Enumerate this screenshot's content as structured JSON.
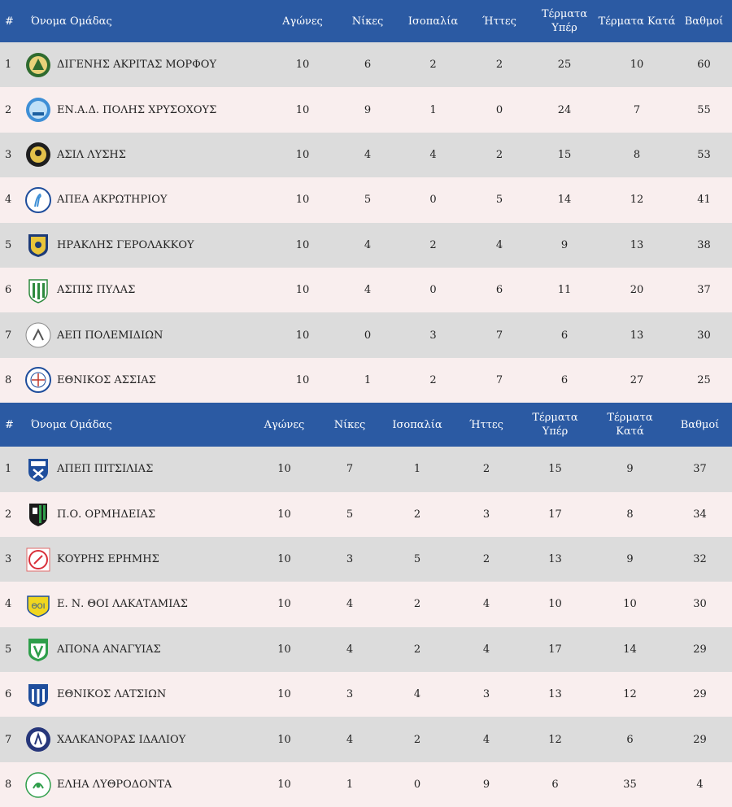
{
  "groups": [
    {
      "headers": {
        "pos": "#",
        "team": "Όνομα Ομάδας",
        "played": "Αγώνες",
        "wins": "Νίκες",
        "draws": "Ισοπαλία",
        "losses": "Ήττες",
        "gf": "Τέρματα Υπέρ",
        "ga": "Τέρματα Κατά",
        "pts": "Βαθμοί"
      },
      "rows": [
        {
          "pos": "1",
          "team": "ΔΙΓΕΝΗΣ ΑΚΡΙΤΑΣ ΜΟΡΦΟΥ",
          "played": "10",
          "wins": "6",
          "draws": "2",
          "losses": "2",
          "gf": "25",
          "ga": "10",
          "pts": "60",
          "logo": "digenis-crest"
        },
        {
          "pos": "2",
          "team": "ΕΝ.Α.Δ. ΠΟΛΗΣ ΧΡΥΣΟΧΟΥΣ",
          "played": "10",
          "wins": "9",
          "draws": "1",
          "losses": "0",
          "gf": "24",
          "ga": "7",
          "pts": "55",
          "logo": "enad-crest"
        },
        {
          "pos": "3",
          "team": "ΑΣΙΛ ΛΥΣΗΣ",
          "played": "10",
          "wins": "4",
          "draws": "4",
          "losses": "2",
          "gf": "15",
          "ga": "8",
          "pts": "53",
          "logo": "asil-crest"
        },
        {
          "pos": "4",
          "team": "ΑΠΕΑ ΑΚΡΩΤΗΡΙΟΥ",
          "played": "10",
          "wins": "5",
          "draws": "0",
          "losses": "5",
          "gf": "14",
          "ga": "12",
          "pts": "41",
          "logo": "apea-crest"
        },
        {
          "pos": "5",
          "team": "ΗΡΑΚΛΗΣ ΓΕΡΟΛΑΚΚΟΥ",
          "played": "10",
          "wins": "4",
          "draws": "2",
          "losses": "4",
          "gf": "9",
          "ga": "13",
          "pts": "38",
          "logo": "iraklis-crest"
        },
        {
          "pos": "6",
          "team": "ΑΣΠΙΣ ΠΥΛΑΣ",
          "played": "10",
          "wins": "4",
          "draws": "0",
          "losses": "6",
          "gf": "11",
          "ga": "20",
          "pts": "37",
          "logo": "aspis-crest"
        },
        {
          "pos": "7",
          "team": "ΑΕΠ ΠΟΛΕΜΙΔΙΩΝ",
          "played": "10",
          "wins": "0",
          "draws": "3",
          "losses": "7",
          "gf": "6",
          "ga": "13",
          "pts": "30",
          "logo": "aep-crest"
        },
        {
          "pos": "8",
          "team": "ΕΘΝΙΚΟΣ ΑΣΣΙΑΣ",
          "played": "10",
          "wins": "1",
          "draws": "2",
          "losses": "7",
          "gf": "6",
          "ga": "27",
          "pts": "25",
          "logo": "ethnikos-assias-crest"
        }
      ]
    },
    {
      "headers": {
        "pos": "#",
        "team": "Όνομα Ομάδας",
        "played": "Αγώνες",
        "wins": "Νίκες",
        "draws": "Ισοπαλία",
        "losses": "Ήττες",
        "gf": "Τέρματα Υπέρ",
        "ga": "Τέρματα Κατά",
        "pts": "Βαθμοί"
      },
      "rows": [
        {
          "pos": "1",
          "team": "ΑΠΕΠ ΠΙΤΣΙΛΙΑΣ",
          "played": "10",
          "wins": "7",
          "draws": "1",
          "losses": "2",
          "gf": "15",
          "ga": "9",
          "pts": "37",
          "logo": "apep-crest"
        },
        {
          "pos": "2",
          "team": "Π.Ο. ΟΡΜΗΔΕΙΑΣ",
          "played": "10",
          "wins": "5",
          "draws": "2",
          "losses": "3",
          "gf": "17",
          "ga": "8",
          "pts": "34",
          "logo": "ormideia-crest"
        },
        {
          "pos": "3",
          "team": "ΚΟΥΡΗΣ ΕΡΗΜΗΣ",
          "played": "10",
          "wins": "3",
          "draws": "5",
          "losses": "2",
          "gf": "13",
          "ga": "9",
          "pts": "32",
          "logo": "kouris-crest"
        },
        {
          "pos": "4",
          "team": "Ε. Ν. ΘΟΙ ΛΑΚΑΤΑΜΙΑΣ",
          "played": "10",
          "wins": "4",
          "draws": "2",
          "losses": "4",
          "gf": "10",
          "ga": "10",
          "pts": "30",
          "logo": "thoi-crest"
        },
        {
          "pos": "5",
          "team": "ΑΠΟΝΑ ΑΝΑΓΥΙΑΣ",
          "played": "10",
          "wins": "4",
          "draws": "2",
          "losses": "4",
          "gf": "17",
          "ga": "14",
          "pts": "29",
          "logo": "apona-crest"
        },
        {
          "pos": "6",
          "team": "ΕΘΝΙΚΟΣ ΛΑΤΣΙΩΝ",
          "played": "10",
          "wins": "3",
          "draws": "4",
          "losses": "3",
          "gf": "13",
          "ga": "12",
          "pts": "29",
          "logo": "ethnikos-latsion-crest"
        },
        {
          "pos": "7",
          "team": "ΧΑΛΚΑΝΟΡΑΣ ΙΔΑΛΙΟΥ",
          "played": "10",
          "wins": "4",
          "draws": "2",
          "losses": "4",
          "gf": "12",
          "ga": "6",
          "pts": "29",
          "logo": "chalkanoras-crest"
        },
        {
          "pos": "8",
          "team": "ΕΛΗΑ ΛΥΘΡΟΔΟΝΤΑ",
          "played": "10",
          "wins": "1",
          "draws": "0",
          "losses": "9",
          "gf": "6",
          "ga": "35",
          "pts": "4",
          "logo": "elia-crest"
        }
      ]
    }
  ],
  "colors": {
    "header_bg": "#2b5aa3",
    "row_odd": "#dcdcdc",
    "row_even": "#f9eeee"
  }
}
